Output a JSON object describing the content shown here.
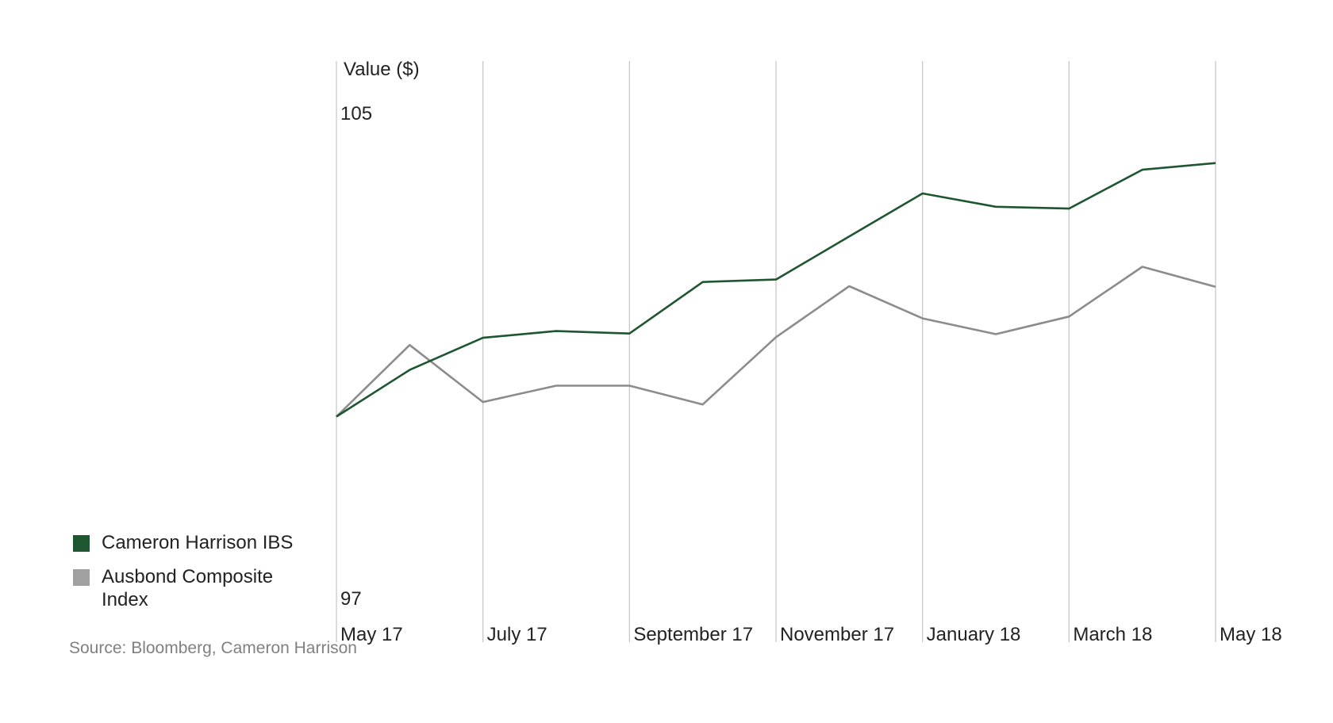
{
  "chart_data": {
    "type": "line",
    "title": "",
    "xlabel": "",
    "ylabel": "Value ($)",
    "ylim": [
      97,
      105
    ],
    "y_ticks": [
      "105",
      "97"
    ],
    "x_tick_labels": [
      "May 17",
      "July 17",
      "September 17",
      "November 17",
      "January 18",
      "March 18",
      "May 18"
    ],
    "x": [
      "May 17",
      "Jun 17",
      "Jul 17",
      "Aug 17",
      "Sep 17",
      "Oct 17",
      "Nov 17",
      "Dec 17",
      "Jan 18",
      "Feb 18",
      "Mar 18",
      "Apr 18",
      "May 18"
    ],
    "grid": "vertical",
    "legend_position": "bottom-left",
    "series": [
      {
        "name": "Cameron Harrison IBS",
        "color": "#1e5631",
        "values": [
          100.0,
          100.77,
          101.3,
          101.41,
          101.37,
          102.22,
          102.26,
          102.97,
          103.68,
          103.46,
          103.43,
          104.07,
          104.18
        ]
      },
      {
        "name": "Ausbond Composite Index",
        "color": "#8c8c8c",
        "values": [
          100.0,
          101.18,
          100.24,
          100.51,
          100.51,
          100.2,
          101.31,
          102.15,
          101.62,
          101.36,
          101.65,
          102.47,
          102.14
        ]
      }
    ]
  },
  "legend": {
    "items": [
      {
        "label": "Cameron Harrison IBS",
        "color": "#1e5631"
      },
      {
        "label": "Ausbond Composite Index",
        "color": "#a0a0a0"
      }
    ]
  },
  "source_text": "Source: Bloomberg, Cameron Harrison"
}
